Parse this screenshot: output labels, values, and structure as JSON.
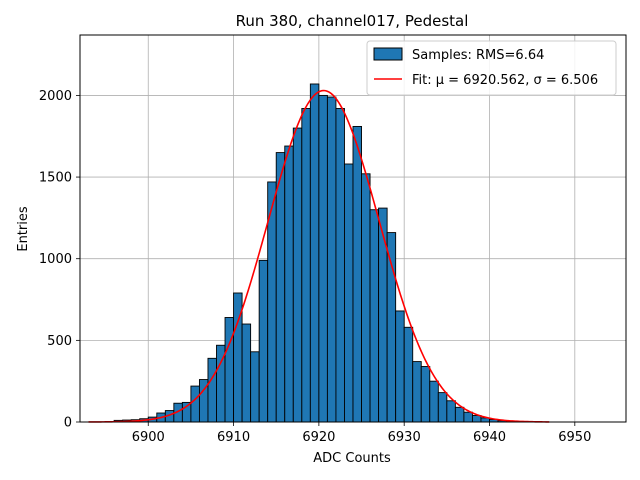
{
  "chart_data": {
    "type": "bar",
    "title": "Run 380, channel017, Pedestal",
    "xlabel": "ADC Counts",
    "ylabel": "Entries",
    "xlim": [
      6892,
      6956
    ],
    "ylim": [
      0,
      2370
    ],
    "xticks": [
      6900,
      6910,
      6920,
      6930,
      6940,
      6950
    ],
    "yticks": [
      0,
      500,
      1000,
      1500,
      2000
    ],
    "grid": true,
    "legend_position": "top-right",
    "bar_color": "#1f77b4",
    "bar_edge_color": "#000000",
    "fit_color": "#ff0000",
    "histogram": {
      "name": "Samples: RMS=6.64",
      "bin_width": 1,
      "bin_starts": [
        6896,
        6897,
        6898,
        6899,
        6900,
        6901,
        6902,
        6903,
        6904,
        6905,
        6906,
        6907,
        6908,
        6909,
        6910,
        6911,
        6912,
        6913,
        6914,
        6915,
        6916,
        6917,
        6918,
        6919,
        6920,
        6921,
        6922,
        6923,
        6924,
        6925,
        6926,
        6927,
        6928,
        6929,
        6930,
        6931,
        6932,
        6933,
        6934,
        6935,
        6936,
        6937,
        6938,
        6939,
        6940,
        6941,
        6942
      ],
      "values": [
        10,
        12,
        14,
        20,
        30,
        55,
        70,
        115,
        120,
        220,
        260,
        390,
        470,
        640,
        790,
        600,
        430,
        990,
        1470,
        1650,
        1690,
        1800,
        1920,
        2070,
        2000,
        1990,
        1920,
        1580,
        1810,
        1520,
        1300,
        1310,
        1160,
        680,
        580,
        370,
        340,
        250,
        180,
        130,
        90,
        60,
        40,
        25,
        15,
        8,
        3
      ]
    },
    "fit": {
      "name": "Fit: $\\mu$ = 6920.562, $\\sigma$ = 6.506",
      "legend_label_display": "Fit: μ = 6920.562, σ = 6.506",
      "mu": 6920.562,
      "sigma": 6.506,
      "amplitude": 2030,
      "x_range": [
        6893,
        6947
      ]
    }
  }
}
